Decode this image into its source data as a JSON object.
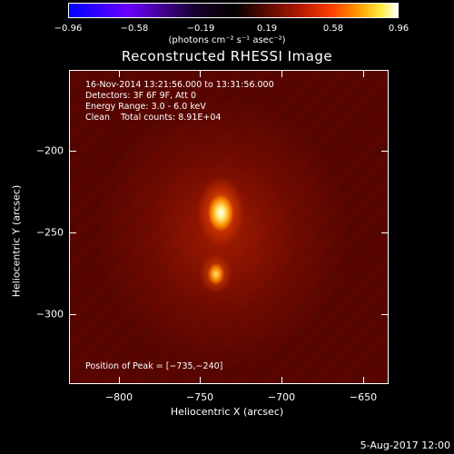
{
  "colorbar": {
    "ticks": [
      "−0.96",
      "−0.58",
      "−0.19",
      "0.19",
      "0.58",
      "0.96"
    ],
    "units": "(photons cm⁻² s⁻¹ asec⁻²)"
  },
  "title": "Reconstructed RHESSI Image",
  "annotations": {
    "time": "16-Nov-2014 13:21:56.000 to 13:31:56.000",
    "detectors": "Detectors: 3F 6F 9F, Att 0",
    "energy": "Energy Range: 3.0 - 6.0 keV",
    "clean": "Clean    Total counts: 8.91E+04",
    "peak": "Position of Peak = [−735,−240]"
  },
  "axes": {
    "xlabel": "Heliocentric X (arcsec)",
    "ylabel": "Heliocentric Y (arcsec)",
    "xticks": [
      "−800",
      "−750",
      "−700",
      "−650"
    ],
    "yticks": [
      "−200",
      "−250",
      "−300"
    ]
  },
  "footer": {
    "date": "5-Aug-2017 12:00"
  }
}
